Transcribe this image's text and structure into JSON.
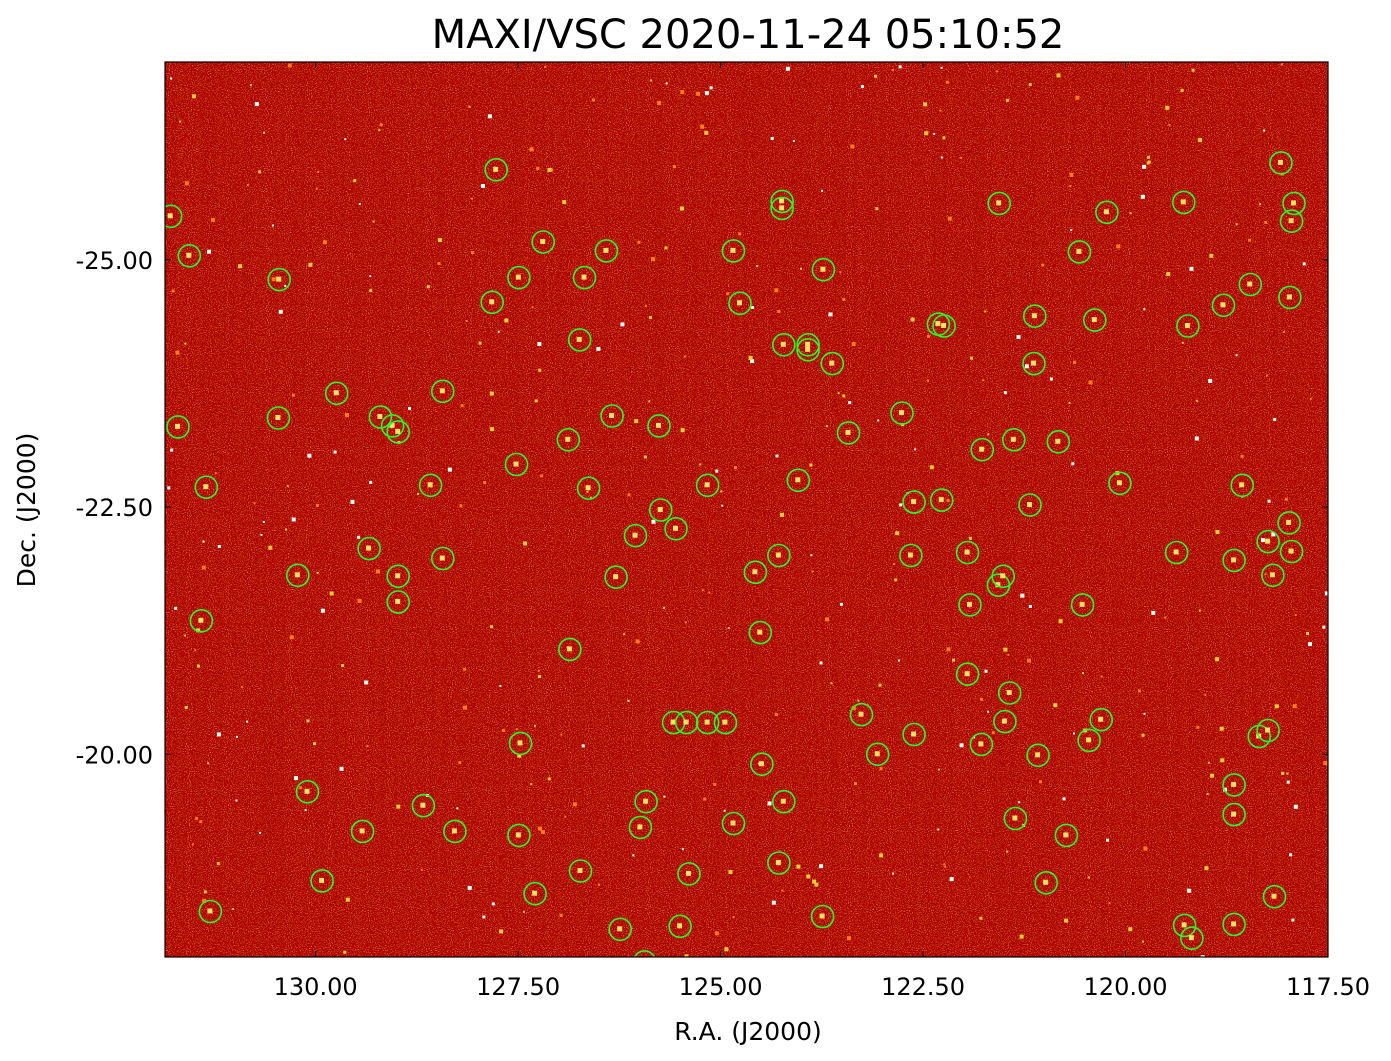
{
  "chart_data": {
    "type": "heatmap",
    "title": "MAXI/VSC 2020-11-24 05:10:52",
    "xlabel": "R.A. (J2000)",
    "ylabel": "Dec. (J2000)",
    "xlim": [
      131.86,
      117.5
    ],
    "ylim": [
      -27.0,
      -17.95
    ],
    "y_inverted": true,
    "x_ticks": [
      130.0,
      127.5,
      125.0,
      122.5,
      120.0,
      117.5
    ],
    "x_tick_labels": [
      "130.00",
      "127.50",
      "125.00",
      "122.50",
      "120.00",
      "117.50"
    ],
    "y_ticks": [
      -25.0,
      -22.5,
      -20.0
    ],
    "y_tick_labels": [
      "-25.00",
      "-22.50",
      "-20.00"
    ],
    "grid": false,
    "colormap": "dark-red-to-white (gist_heat style)",
    "background_color": "#b20000",
    "marker_color": "#22ff22",
    "marker_shape": "circle",
    "source_markers": [
      {
        "ra": 131.79,
        "dec": -25.44
      },
      {
        "ra": 131.56,
        "dec": -25.04
      },
      {
        "ra": 131.7,
        "dec": -23.31
      },
      {
        "ra": 131.35,
        "dec": -22.7
      },
      {
        "ra": 131.41,
        "dec": -21.35
      },
      {
        "ra": 130.46,
        "dec": -23.4
      },
      {
        "ra": 130.45,
        "dec": -24.8
      },
      {
        "ra": 130.22,
        "dec": -21.81
      },
      {
        "ra": 130.1,
        "dec": -19.62
      },
      {
        "ra": 129.92,
        "dec": -18.72
      },
      {
        "ra": 131.3,
        "dec": -18.41
      },
      {
        "ra": 129.74,
        "dec": -23.65
      },
      {
        "ra": 129.34,
        "dec": -22.08
      },
      {
        "ra": 129.42,
        "dec": -19.22
      },
      {
        "ra": 129.2,
        "dec": -23.41
      },
      {
        "ra": 129.05,
        "dec": -23.32
      },
      {
        "ra": 128.98,
        "dec": -23.26
      },
      {
        "ra": 128.98,
        "dec": -21.8
      },
      {
        "ra": 128.98,
        "dec": -21.54
      },
      {
        "ra": 128.67,
        "dec": -19.48
      },
      {
        "ra": 128.58,
        "dec": -22.72
      },
      {
        "ra": 128.43,
        "dec": -23.67
      },
      {
        "ra": 128.43,
        "dec": -21.98
      },
      {
        "ra": 128.28,
        "dec": -19.22
      },
      {
        "ra": 127.77,
        "dec": -25.91
      },
      {
        "ra": 127.82,
        "dec": -24.57
      },
      {
        "ra": 127.52,
        "dec": -22.93
      },
      {
        "ra": 127.47,
        "dec": -20.11
      },
      {
        "ra": 127.49,
        "dec": -19.18
      },
      {
        "ra": 127.29,
        "dec": -18.59
      },
      {
        "ra": 127.49,
        "dec": -24.82
      },
      {
        "ra": 127.19,
        "dec": -25.18
      },
      {
        "ra": 126.88,
        "dec": -23.18
      },
      {
        "ra": 126.86,
        "dec": -21.06
      },
      {
        "ra": 126.74,
        "dec": -24.19
      },
      {
        "ra": 126.68,
        "dec": -24.82
      },
      {
        "ra": 126.73,
        "dec": -18.82
      },
      {
        "ra": 126.63,
        "dec": -22.69
      },
      {
        "ra": 126.41,
        "dec": -25.09
      },
      {
        "ra": 126.34,
        "dec": -23.42
      },
      {
        "ra": 126.29,
        "dec": -21.79
      },
      {
        "ra": 126.24,
        "dec": -18.23
      },
      {
        "ra": 126.05,
        "dec": -22.21
      },
      {
        "ra": 125.99,
        "dec": -19.26
      },
      {
        "ra": 125.92,
        "dec": -19.52
      },
      {
        "ra": 125.94,
        "dec": -17.9
      },
      {
        "ra": 125.76,
        "dec": -23.32
      },
      {
        "ra": 125.74,
        "dec": -22.47
      },
      {
        "ra": 125.58,
        "dec": -20.32
      },
      {
        "ra": 125.55,
        "dec": -22.28
      },
      {
        "ra": 125.5,
        "dec": -18.26
      },
      {
        "ra": 125.42,
        "dec": -20.32
      },
      {
        "ra": 125.39,
        "dec": -18.79
      },
      {
        "ra": 125.16,
        "dec": -20.32
      },
      {
        "ra": 125.16,
        "dec": -22.72
      },
      {
        "ra": 124.94,
        "dec": -20.32
      },
      {
        "ra": 124.84,
        "dec": -19.3
      },
      {
        "ra": 124.84,
        "dec": -25.09
      },
      {
        "ra": 124.76,
        "dec": -24.56
      },
      {
        "ra": 124.57,
        "dec": -21.84
      },
      {
        "ra": 124.51,
        "dec": -21.23
      },
      {
        "ra": 124.49,
        "dec": -19.9
      },
      {
        "ra": 124.28,
        "dec": -22.01
      },
      {
        "ra": 124.28,
        "dec": -18.9
      },
      {
        "ra": 124.24,
        "dec": -25.59
      },
      {
        "ra": 124.24,
        "dec": -25.52
      },
      {
        "ra": 124.22,
        "dec": -24.14
      },
      {
        "ra": 124.22,
        "dec": -19.52
      },
      {
        "ra": 124.04,
        "dec": -22.77
      },
      {
        "ra": 123.92,
        "dec": -24.14
      },
      {
        "ra": 123.92,
        "dec": -24.09
      },
      {
        "ra": 123.73,
        "dec": -24.9
      },
      {
        "ra": 123.74,
        "dec": -18.36
      },
      {
        "ra": 123.62,
        "dec": -23.95
      },
      {
        "ra": 123.42,
        "dec": -23.25
      },
      {
        "ra": 123.26,
        "dec": -20.4
      },
      {
        "ra": 123.06,
        "dec": -20.0
      },
      {
        "ra": 122.76,
        "dec": -23.45
      },
      {
        "ra": 122.65,
        "dec": -22.01
      },
      {
        "ra": 122.61,
        "dec": -20.2
      },
      {
        "ra": 122.61,
        "dec": -22.55
      },
      {
        "ra": 122.31,
        "dec": -24.35
      },
      {
        "ra": 122.24,
        "dec": -24.33
      },
      {
        "ra": 122.27,
        "dec": -22.57
      },
      {
        "ra": 121.95,
        "dec": -20.81
      },
      {
        "ra": 121.95,
        "dec": -22.04
      },
      {
        "ra": 121.92,
        "dec": -21.51
      },
      {
        "ra": 121.78,
        "dec": -20.1
      },
      {
        "ra": 121.77,
        "dec": -23.08
      },
      {
        "ra": 121.56,
        "dec": -25.57
      },
      {
        "ra": 121.57,
        "dec": -21.71
      },
      {
        "ra": 121.51,
        "dec": -21.8
      },
      {
        "ra": 121.49,
        "dec": -20.33
      },
      {
        "ra": 121.43,
        "dec": -20.62
      },
      {
        "ra": 121.38,
        "dec": -23.18
      },
      {
        "ra": 121.36,
        "dec": -19.35
      },
      {
        "ra": 121.18,
        "dec": -22.52
      },
      {
        "ra": 121.12,
        "dec": -24.43
      },
      {
        "ra": 121.13,
        "dec": -23.95
      },
      {
        "ra": 121.08,
        "dec": -19.99
      },
      {
        "ra": 120.98,
        "dec": -18.7
      },
      {
        "ra": 120.83,
        "dec": -23.16
      },
      {
        "ra": 120.73,
        "dec": -19.18
      },
      {
        "ra": 120.57,
        "dec": -25.08
      },
      {
        "ra": 120.53,
        "dec": -21.51
      },
      {
        "ra": 120.45,
        "dec": -20.14
      },
      {
        "ra": 120.38,
        "dec": -24.39
      },
      {
        "ra": 120.3,
        "dec": -20.35
      },
      {
        "ra": 120.23,
        "dec": -25.48
      },
      {
        "ra": 120.07,
        "dec": -22.74
      },
      {
        "ra": 119.37,
        "dec": -22.04
      },
      {
        "ra": 119.28,
        "dec": -25.58
      },
      {
        "ra": 119.23,
        "dec": -24.33
      },
      {
        "ra": 119.27,
        "dec": -18.27
      },
      {
        "ra": 119.18,
        "dec": -18.14
      },
      {
        "ra": 118.79,
        "dec": -24.54
      },
      {
        "ra": 118.66,
        "dec": -21.96
      },
      {
        "ra": 118.66,
        "dec": -19.69
      },
      {
        "ra": 118.66,
        "dec": -19.39
      },
      {
        "ra": 118.66,
        "dec": -18.28
      },
      {
        "ra": 118.56,
        "dec": -22.72
      },
      {
        "ra": 118.46,
        "dec": -24.75
      },
      {
        "ra": 118.35,
        "dec": -20.18
      },
      {
        "ra": 118.24,
        "dec": -20.24
      },
      {
        "ra": 118.24,
        "dec": -22.15
      },
      {
        "ra": 118.18,
        "dec": -21.81
      },
      {
        "ra": 118.16,
        "dec": -18.56
      },
      {
        "ra": 118.08,
        "dec": -25.98
      },
      {
        "ra": 117.98,
        "dec": -22.34
      },
      {
        "ra": 117.97,
        "dec": -24.62
      },
      {
        "ra": 117.95,
        "dec": -22.05
      },
      {
        "ra": 117.95,
        "dec": -25.39
      },
      {
        "ra": 117.92,
        "dec": -25.57
      }
    ]
  }
}
